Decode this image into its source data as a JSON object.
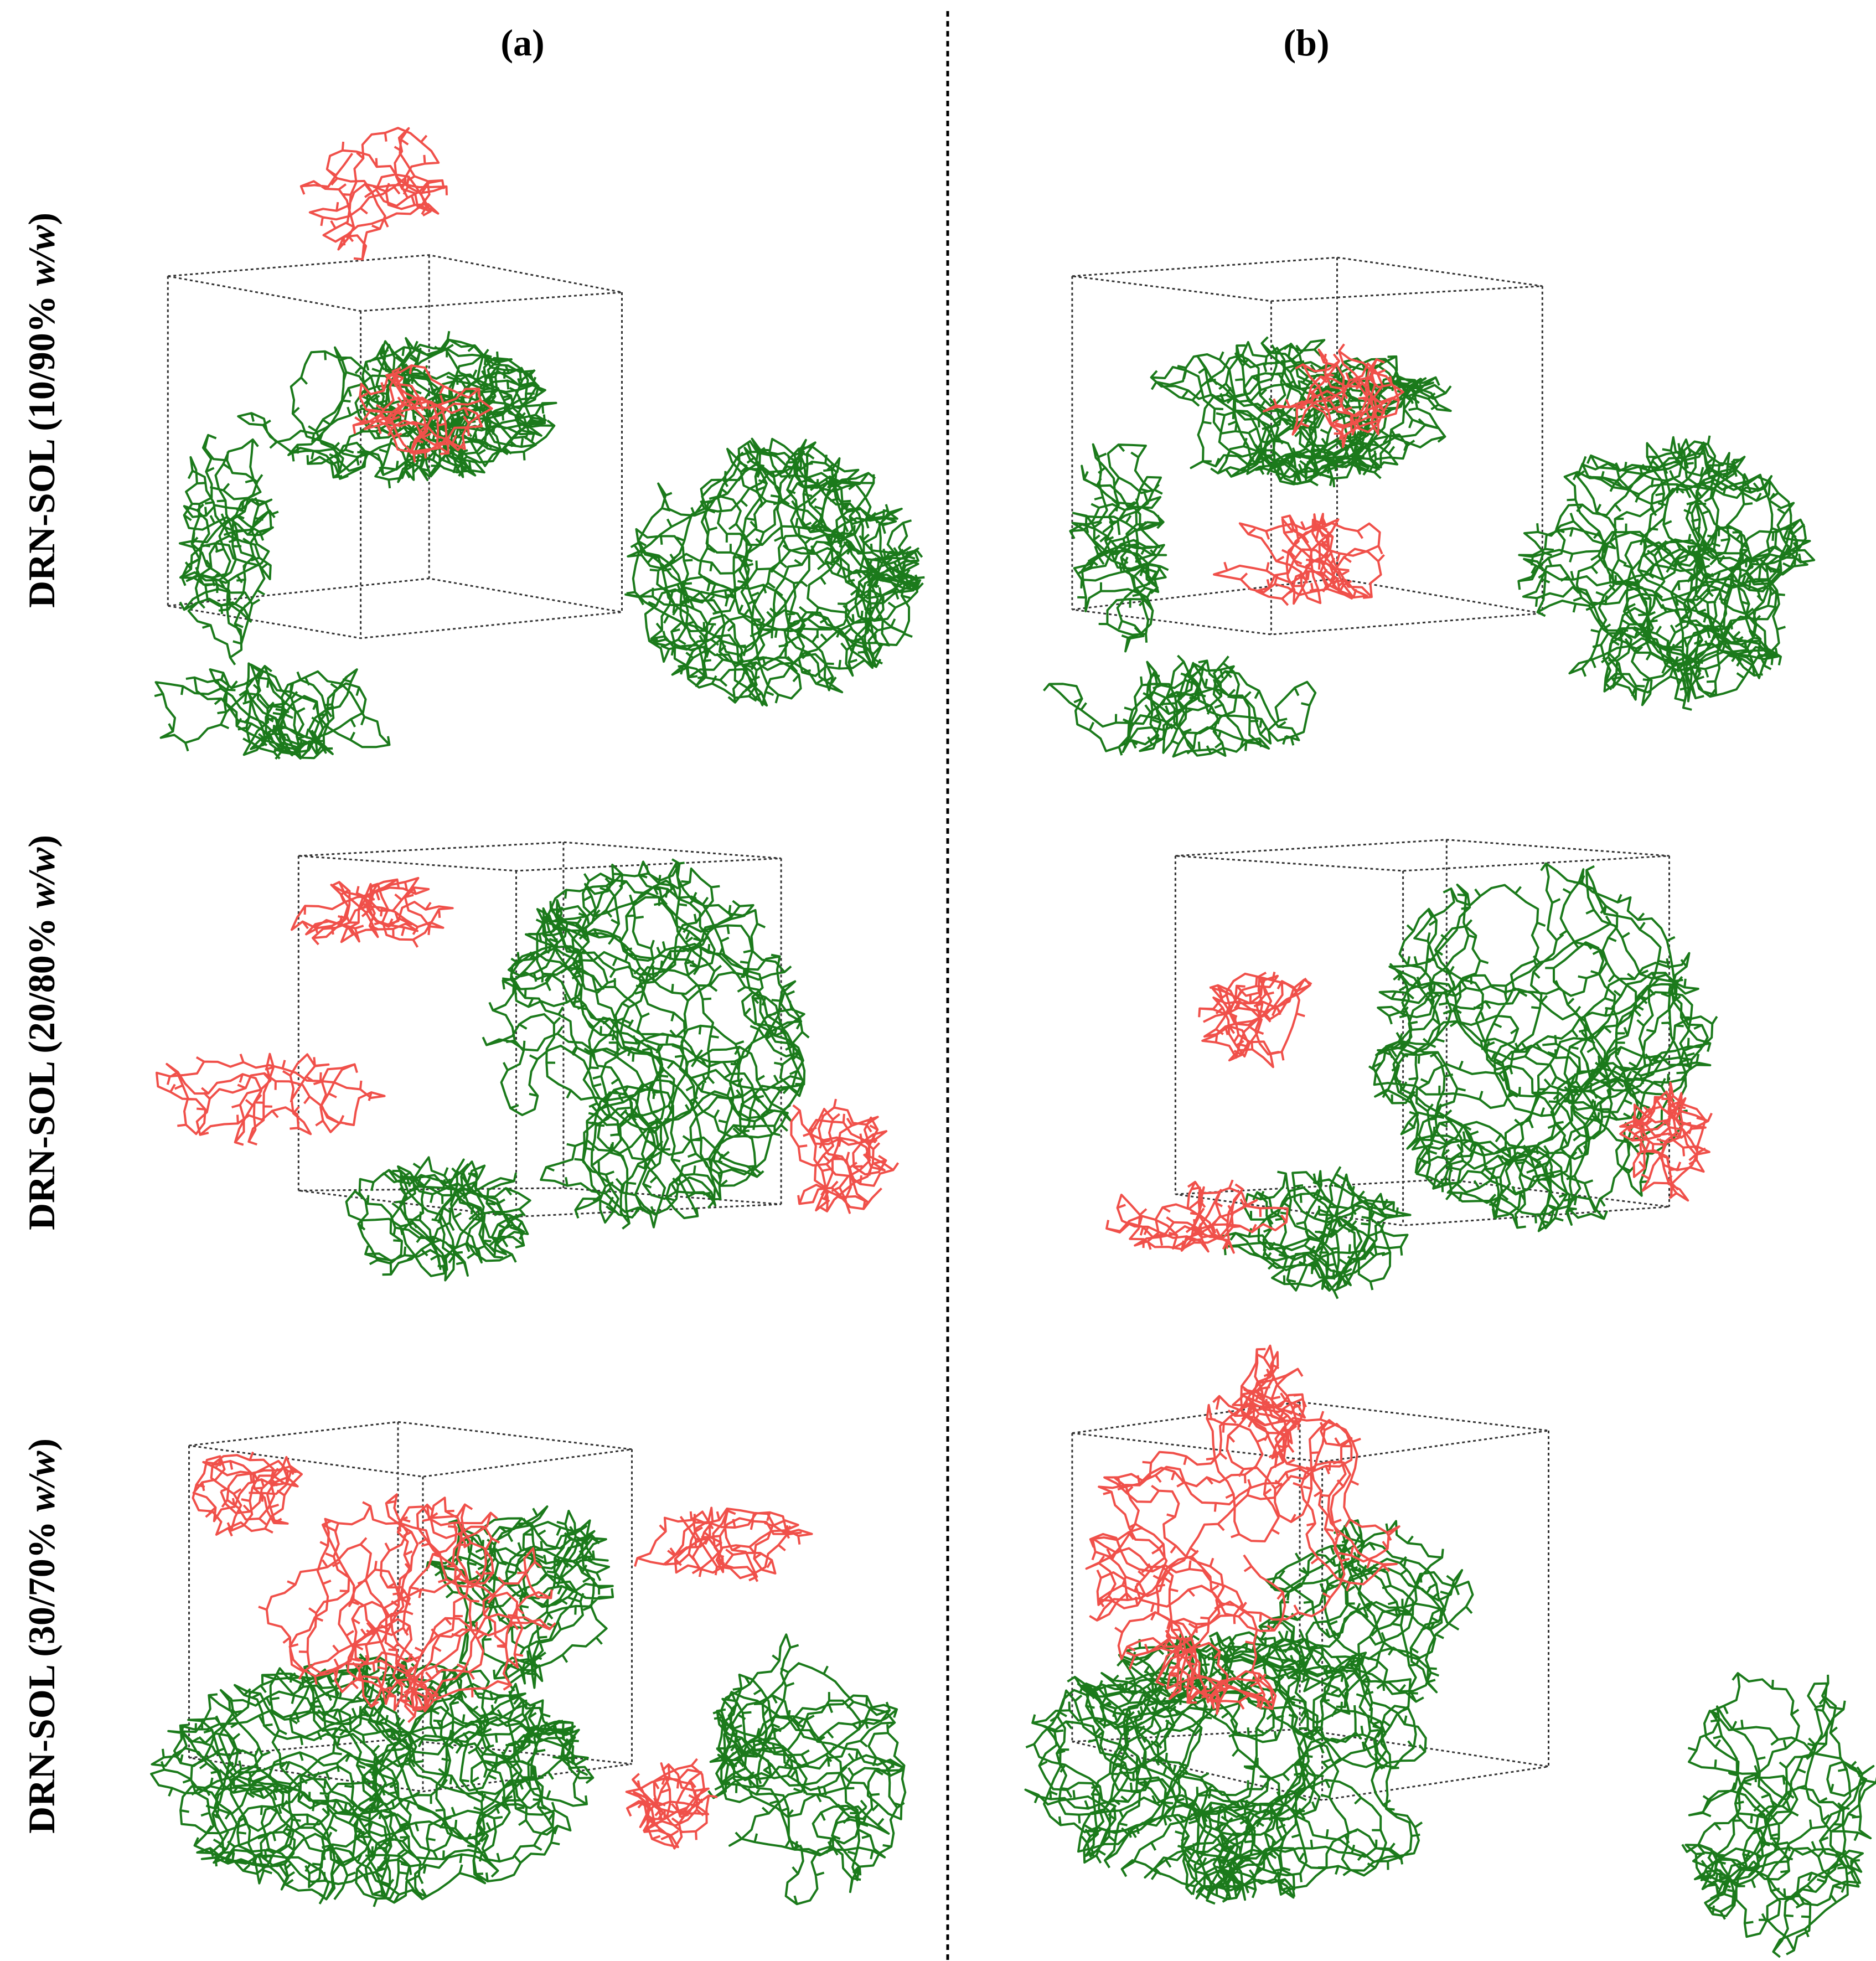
{
  "columns": [
    {
      "label": "(a)"
    },
    {
      "label": "(b)"
    }
  ],
  "rows": [
    {
      "prefix": "DRN-SOL (10/90% ",
      "italic": "w/w",
      "suffix": ")"
    },
    {
      "prefix": "DRN-SOL (20/80% ",
      "italic": "w/w",
      "suffix": ")"
    },
    {
      "prefix": "DRN-SOL (30/70% ",
      "italic": "w/w",
      "suffix": ")"
    }
  ]
}
